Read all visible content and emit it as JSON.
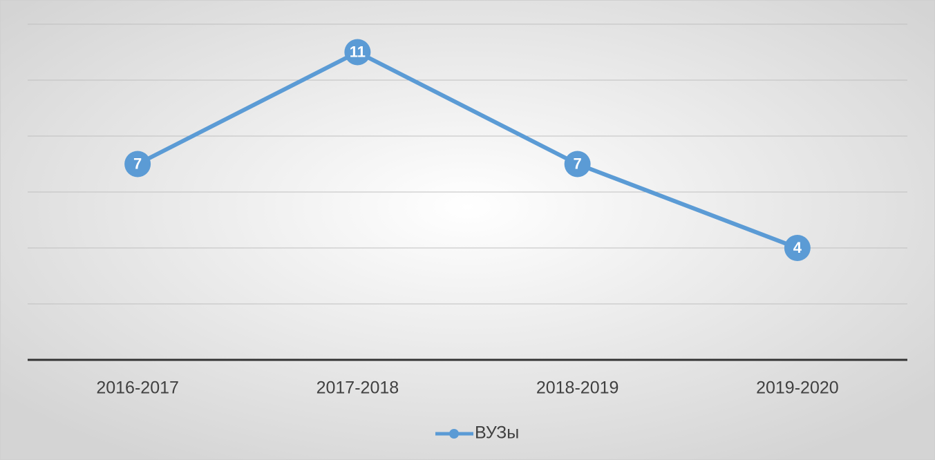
{
  "chart_data": {
    "type": "line",
    "categories": [
      "2016-2017",
      "2017-2018",
      "2018-2019",
      "2019-2020"
    ],
    "series": [
      {
        "name": "ВУЗы",
        "color": "#5b9bd5",
        "values": [
          7,
          11,
          7,
          4
        ]
      }
    ],
    "ylim": [
      0,
      12
    ],
    "yticks": [
      0,
      2,
      4,
      6,
      8,
      10,
      12
    ],
    "grid": true,
    "legend": "bottom"
  }
}
